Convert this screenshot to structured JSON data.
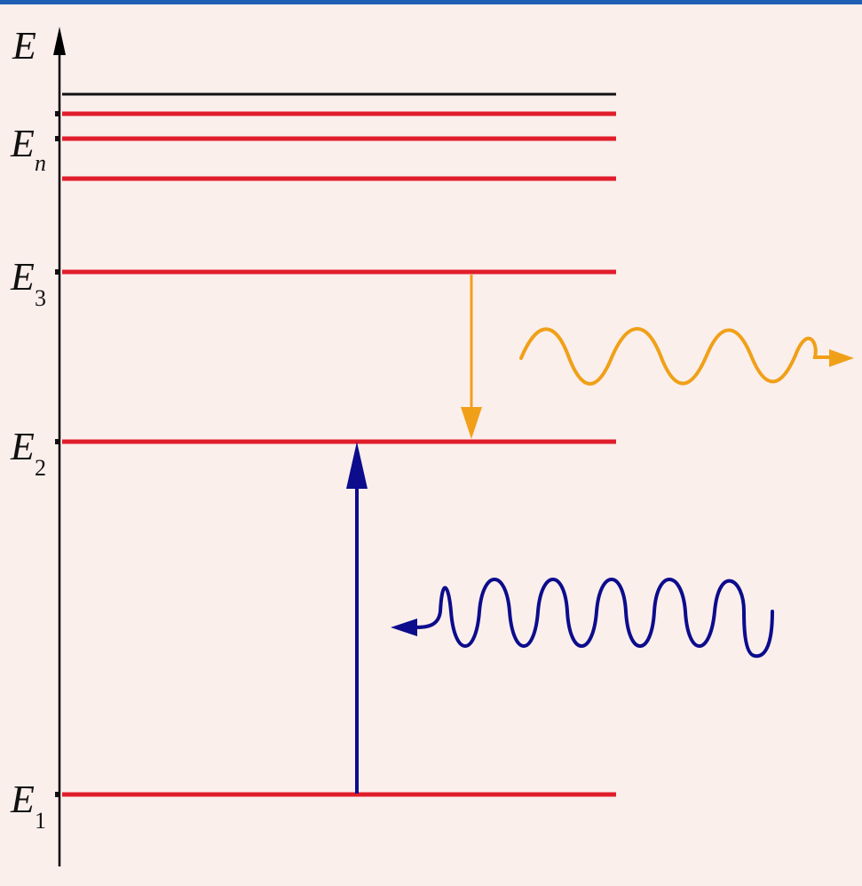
{
  "colors": {
    "background": "#fbefec",
    "top_band": "#1f5fb3",
    "axis": "#000000",
    "ionization_level": "#111111",
    "energy_levels": "#e01e2b",
    "emission": "#f0a018",
    "absorption": "#0c0c8c"
  },
  "axis": {
    "label": "E"
  },
  "levels": {
    "E1": {
      "symbol": "E",
      "subscript": "1"
    },
    "E2": {
      "symbol": "E",
      "subscript": "2"
    },
    "E3": {
      "symbol": "E",
      "subscript": "3"
    },
    "En": {
      "symbol": "E",
      "subscript": "n"
    }
  },
  "transitions": {
    "absorption": {
      "from": "E1",
      "to": "E2"
    },
    "emission": {
      "from": "E3",
      "to": "E2"
    }
  },
  "icons": {
    "absorbed_photon": "wave-arrow-left",
    "emitted_photon": "wave-arrow-right"
  }
}
